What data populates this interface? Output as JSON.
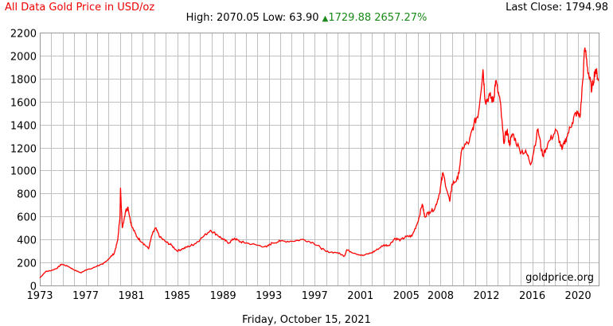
{
  "header": {
    "title": "All Data Gold Price in USD/oz",
    "last_close": "Last Close: 1794.98",
    "high_low": "High: 2070.05 Low: 63.90",
    "change_arrow": "▲",
    "change": "1729.88 2657.27%",
    "watermark": "goldprice.org",
    "date": "Friday, October 15, 2021"
  },
  "colors": {
    "line": "#ff0000",
    "grid": "#c0c0c0",
    "up": "#1a8a1a"
  },
  "chart_data": {
    "type": "line",
    "title": "All Data Gold Price in USD/oz",
    "xlabel": "",
    "ylabel": "USD/oz",
    "xlim": [
      1973,
      2021.8
    ],
    "ylim": [
      0,
      2200
    ],
    "yticks": [
      0,
      200,
      400,
      600,
      800,
      1000,
      1200,
      1400,
      1600,
      1800,
      2000,
      2200
    ],
    "xticks": [
      1973,
      1977,
      1981,
      1985,
      1989,
      1993,
      1997,
      2001,
      2005,
      2008,
      2012,
      2016,
      2020
    ],
    "grid": true,
    "series": [
      {
        "name": "Gold",
        "x": [
          1973.0,
          1973.5,
          1974.0,
          1974.5,
          1974.9,
          1975.5,
          1976.0,
          1976.6,
          1977.0,
          1977.5,
          1978.0,
          1978.5,
          1979.0,
          1979.5,
          1979.8,
          1980.0,
          1980.05,
          1980.2,
          1980.5,
          1980.7,
          1981.0,
          1981.5,
          1982.0,
          1982.5,
          1982.8,
          1983.1,
          1983.5,
          1984.0,
          1984.5,
          1985.0,
          1985.5,
          1986.0,
          1986.5,
          1987.0,
          1987.9,
          1988.5,
          1989.0,
          1989.5,
          1990.0,
          1990.5,
          1991.0,
          1992.0,
          1992.8,
          1993.3,
          1994.0,
          1995.0,
          1996.0,
          1996.9,
          1997.5,
          1998.0,
          1999.0,
          1999.6,
          1999.8,
          2000.5,
          2001.2,
          2002.0,
          2002.5,
          2003.0,
          2003.5,
          2004.0,
          2004.5,
          2005.0,
          2005.5,
          2006.0,
          2006.4,
          2006.6,
          2007.0,
          2007.5,
          2007.9,
          2008.2,
          2008.8,
          2009.0,
          2009.5,
          2009.9,
          2010.5,
          2010.9,
          2011.3,
          2011.7,
          2011.9,
          2012.3,
          2012.6,
          2012.8,
          2013.2,
          2013.5,
          2013.8,
          2014.0,
          2014.3,
          2014.9,
          2015.5,
          2015.9,
          2016.5,
          2016.9,
          2017.5,
          2018.1,
          2018.6,
          2019.0,
          2019.5,
          2019.8,
          2020.2,
          2020.6,
          2020.9,
          2021.2,
          2021.5,
          2021.8
        ],
        "y": [
          65,
          120,
          130,
          150,
          185,
          165,
          135,
          110,
          135,
          145,
          170,
          185,
          230,
          280,
          390,
          600,
          850,
          500,
          650,
          680,
          520,
          420,
          370,
          320,
          440,
          500,
          420,
          380,
          350,
          300,
          320,
          340,
          360,
          400,
          480,
          440,
          400,
          370,
          410,
          380,
          370,
          350,
          335,
          370,
          385,
          385,
          400,
          370,
          330,
          295,
          285,
          255,
          310,
          280,
          260,
          285,
          315,
          350,
          350,
          410,
          395,
          425,
          430,
          550,
          710,
          600,
          640,
          670,
          800,
          980,
          730,
          880,
          930,
          1200,
          1250,
          1400,
          1500,
          1880,
          1600,
          1650,
          1600,
          1780,
          1600,
          1250,
          1350,
          1230,
          1320,
          1180,
          1150,
          1060,
          1360,
          1130,
          1260,
          1350,
          1180,
          1290,
          1420,
          1500,
          1480,
          2070,
          1850,
          1700,
          1880,
          1795
        ]
      }
    ]
  }
}
